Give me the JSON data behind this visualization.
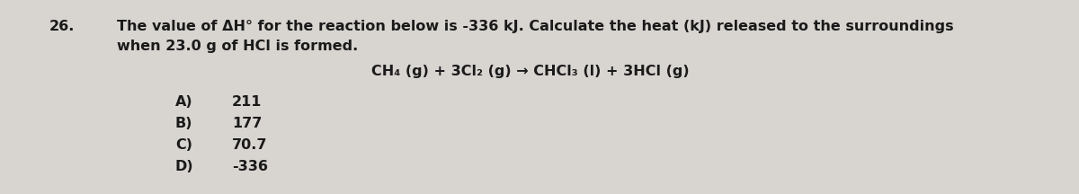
{
  "question_number": "26.",
  "question_text_line1": "The value of ΔH° for the reaction below is -336 kJ. Calculate the heat (kJ) released to the surroundings",
  "question_text_line2": "when 23.0 g of HCl is formed.",
  "equation": "CH₄ (g) + 3Cl₂ (g) → CHCl₃ (l) + 3HCl (g)",
  "choices": [
    [
      "A)",
      "211"
    ],
    [
      "B)",
      "177"
    ],
    [
      "C)",
      "70.7"
    ],
    [
      "D)",
      "-336"
    ]
  ],
  "background_color": "#d8d4d0",
  "text_color": "#1a1a1a",
  "font_size_main": 11.5,
  "font_family": "DejaVu Sans"
}
